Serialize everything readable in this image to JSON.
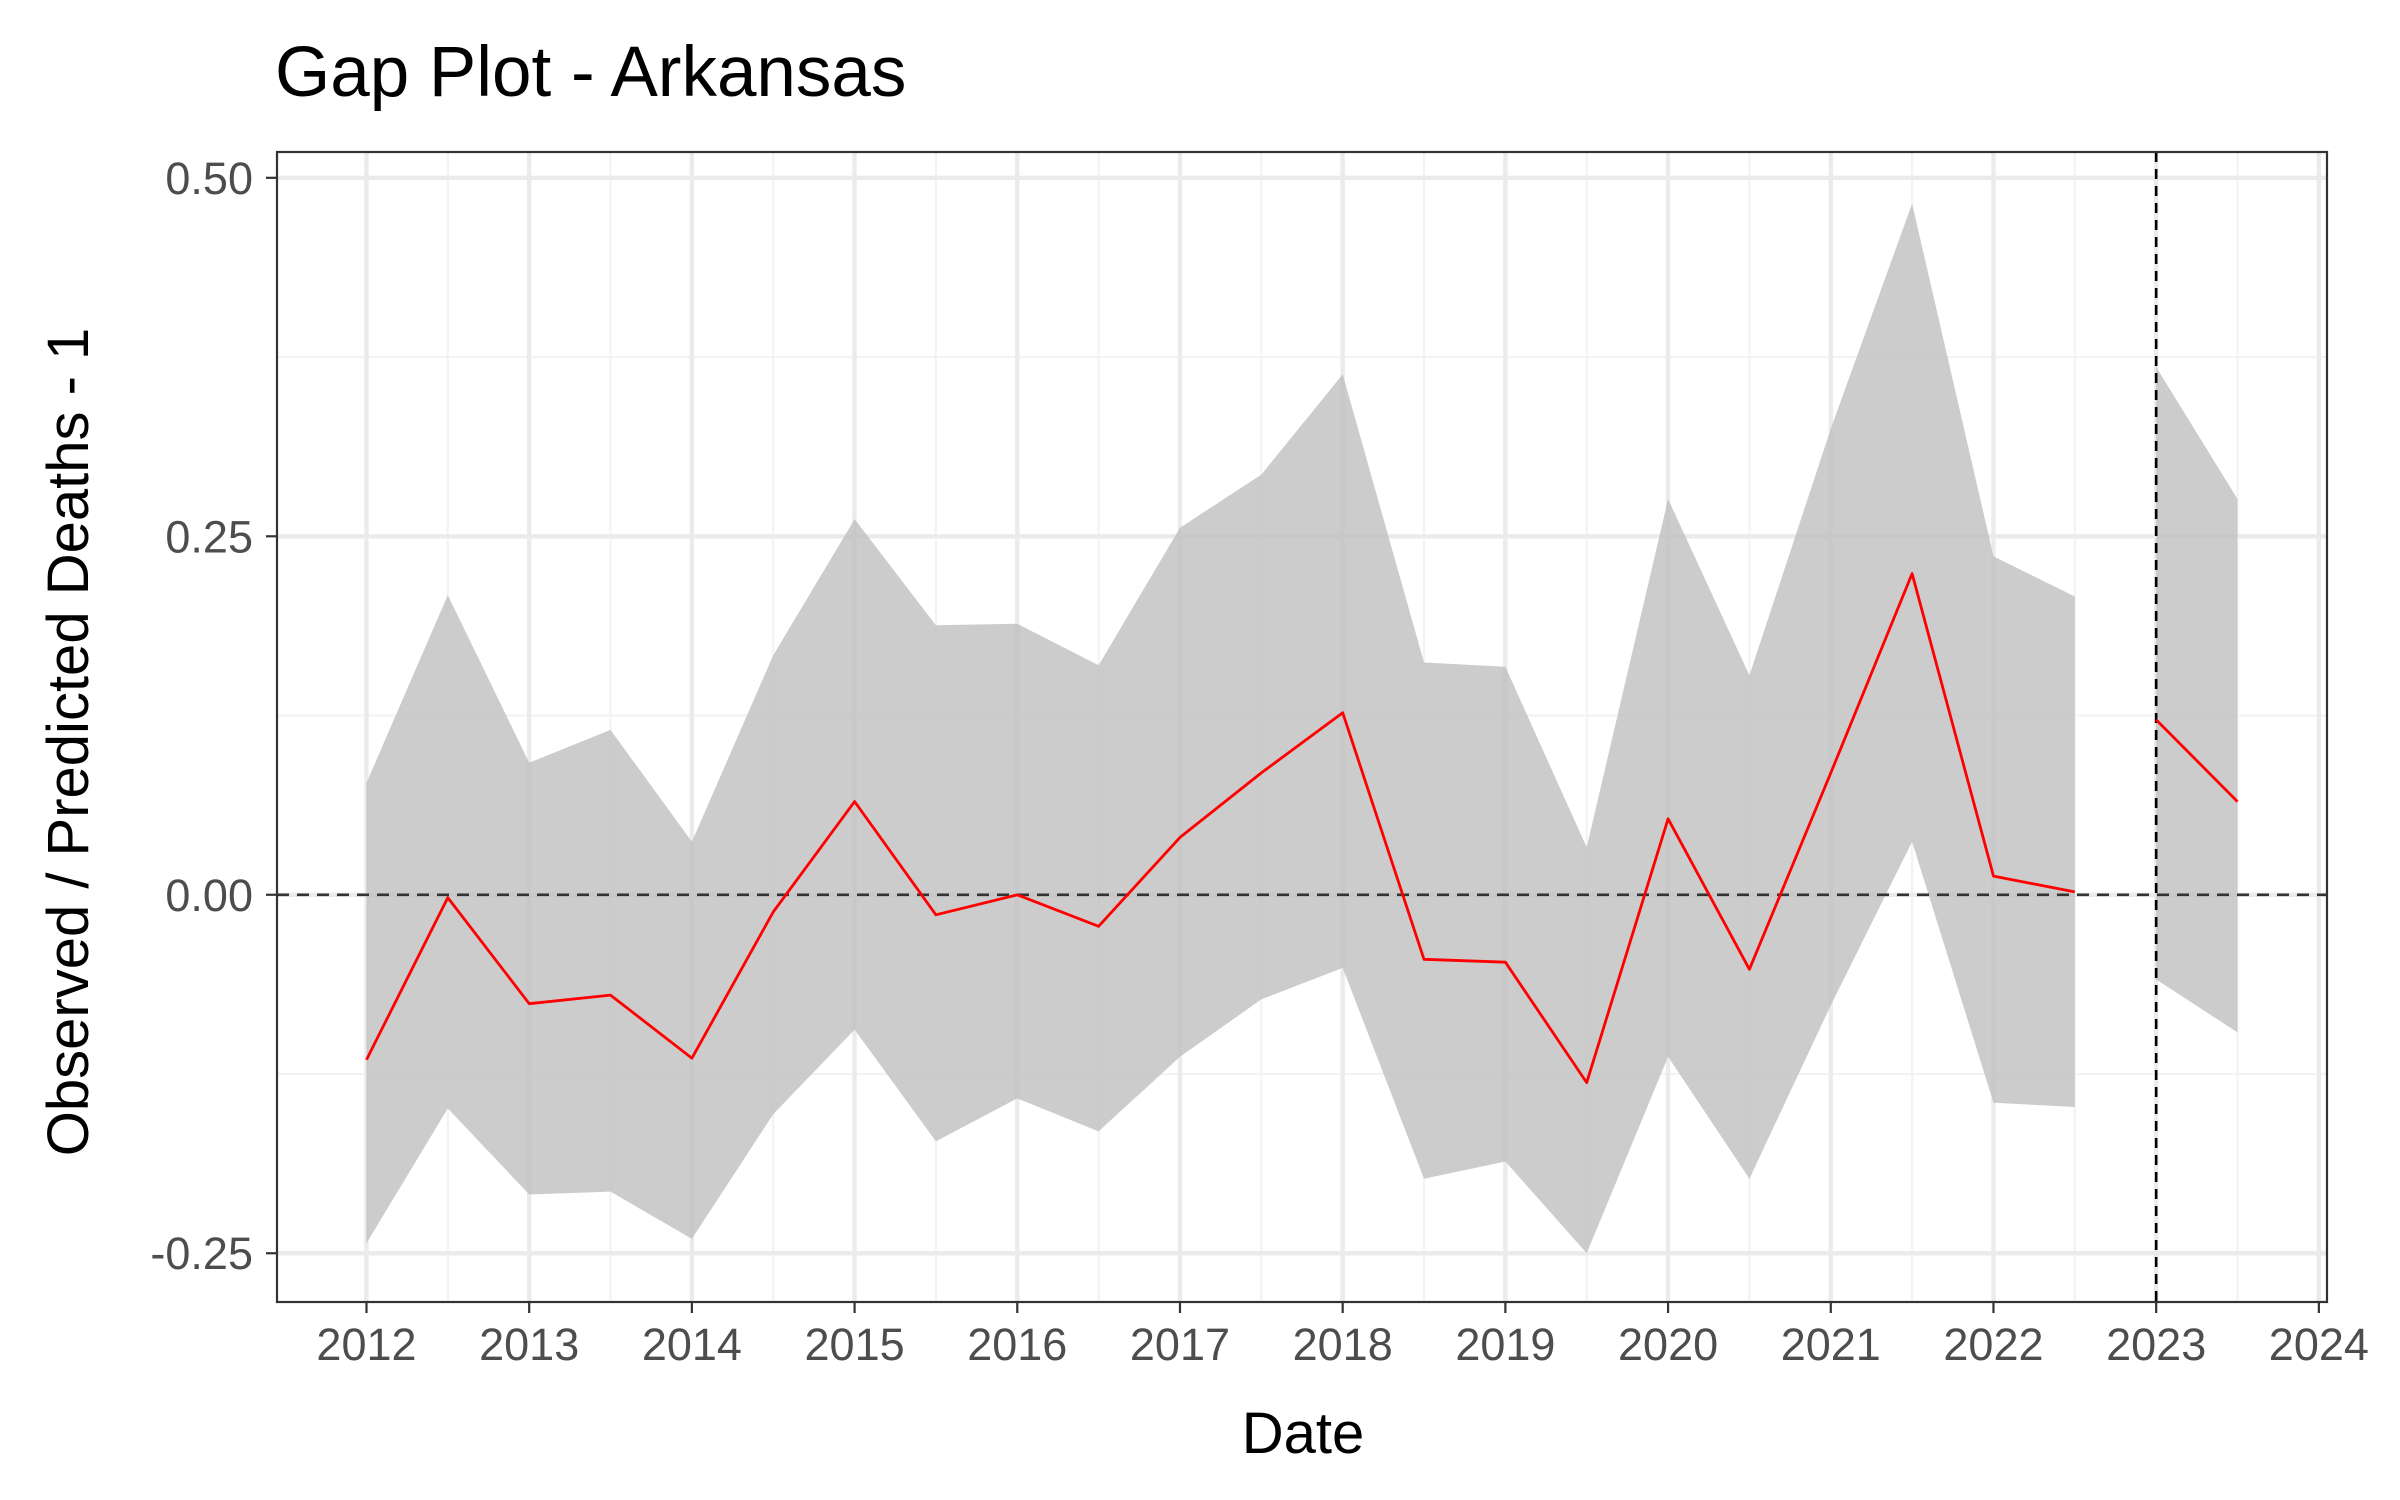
{
  "chart_data": {
    "type": "line",
    "title": "Gap Plot - Arkansas",
    "xlabel": "Date",
    "ylabel": "Observed / Predicted Deaths - 1",
    "xlim": [
      2011.45,
      2024.05
    ],
    "ylim": [
      -0.284,
      0.518
    ],
    "x_ticks": [
      2012,
      2013,
      2014,
      2015,
      2016,
      2017,
      2018,
      2019,
      2020,
      2021,
      2022,
      2023,
      2024
    ],
    "y_ticks": [
      -0.25,
      0.0,
      0.25,
      0.5
    ],
    "x_tick_labels": [
      "2012",
      "2013",
      "2014",
      "2015",
      "2016",
      "2017",
      "2018",
      "2019",
      "2020",
      "2021",
      "2022",
      "2023",
      "2024"
    ],
    "y_tick_labels": [
      "-0.25",
      "0.00",
      "0.25",
      "0.50"
    ],
    "grid": true,
    "reference_lines": {
      "horizontal_dashed_y": 0.0,
      "vertical_dashed_x": 2023.0
    },
    "colors": {
      "line": "#ff0000",
      "band": "#bebebe",
      "grid_major": "#ebebeb",
      "grid_minor": "#f3f3f3",
      "axis": "#333333"
    },
    "segments": [
      {
        "x": [
          2012.0,
          2012.5,
          2013.0,
          2013.5,
          2014.0,
          2014.5,
          2015.0,
          2015.5,
          2016.0,
          2016.5,
          2017.0,
          2017.5,
          2018.0,
          2018.5,
          2019.0,
          2019.5,
          2020.0,
          2020.5,
          2021.0,
          2021.5,
          2022.0,
          2022.5
        ],
        "y": [
          -0.115,
          -0.002,
          -0.076,
          -0.07,
          -0.114,
          -0.012,
          0.065,
          -0.014,
          0.0,
          -0.022,
          0.04,
          0.085,
          0.127,
          -0.045,
          -0.047,
          -0.131,
          0.053,
          -0.052,
          0.085,
          0.224,
          0.013,
          0.002
        ],
        "lower": [
          -0.243,
          -0.149,
          -0.209,
          -0.207,
          -0.24,
          -0.153,
          -0.094,
          -0.172,
          -0.142,
          -0.165,
          -0.113,
          -0.073,
          -0.051,
          -0.198,
          -0.186,
          -0.25,
          -0.113,
          -0.198,
          -0.077,
          0.037,
          -0.145,
          -0.148
        ],
        "upper": [
          0.078,
          0.209,
          0.092,
          0.115,
          0.037,
          0.167,
          0.262,
          0.188,
          0.189,
          0.16,
          0.256,
          0.293,
          0.363,
          0.162,
          0.159,
          0.033,
          0.276,
          0.153,
          0.325,
          0.482,
          0.236,
          0.208
        ]
      },
      {
        "x": [
          2023.0,
          2023.5
        ],
        "y": [
          0.122,
          0.065
        ],
        "lower": [
          -0.059,
          -0.096
        ],
        "upper": [
          0.368,
          0.276
        ]
      }
    ]
  }
}
